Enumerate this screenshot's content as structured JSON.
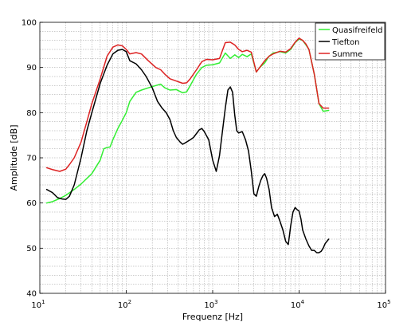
{
  "chart_data": {
    "type": "line",
    "title": "",
    "xlabel": "Frequenz [Hz]",
    "ylabel": "Amplitude [dB]",
    "x_scale": "log",
    "xlim": [
      10,
      100000
    ],
    "ylim": [
      40,
      100
    ],
    "grid": "on",
    "legend_position": "top-right",
    "x_ticks": [
      {
        "value": 10,
        "base": "10",
        "exp": "1"
      },
      {
        "value": 100,
        "base": "10",
        "exp": "2"
      },
      {
        "value": 1000,
        "base": "10",
        "exp": "3"
      },
      {
        "value": 10000,
        "base": "10",
        "exp": "4"
      },
      {
        "value": 100000,
        "base": "10",
        "exp": "5"
      }
    ],
    "y_ticks": [
      "40",
      "50",
      "60",
      "70",
      "80",
      "90",
      "100"
    ],
    "series": [
      {
        "name": "Quasifreifeld",
        "color": "#33ee33",
        "x": [
          12,
          14,
          17,
          20,
          25,
          30,
          40,
          50,
          55,
          60,
          65,
          70,
          80,
          90,
          100,
          110,
          130,
          150,
          180,
          220,
          250,
          280,
          320,
          380,
          450,
          500,
          550,
          650,
          750,
          850,
          1000,
          1200,
          1400,
          1600,
          1800,
          2000,
          2200,
          2500,
          2800,
          3200,
          3500,
          4000,
          4500,
          5000,
          6000,
          7000,
          8000,
          9000,
          10000,
          11000,
          12000,
          13000,
          15000,
          17000,
          19000,
          22000
        ],
        "y": [
          60,
          60.3,
          61,
          61.7,
          63,
          64.2,
          66.5,
          69.5,
          72,
          72.3,
          72.4,
          74,
          76.5,
          78.3,
          80,
          82.5,
          84.5,
          85,
          85.5,
          86,
          86.3,
          85.5,
          85,
          85.1,
          84.4,
          84.6,
          86,
          88.5,
          90,
          90.5,
          90.6,
          91,
          93.2,
          92,
          92.8,
          92.2,
          92.9,
          92.4,
          93,
          89,
          90,
          91,
          92.5,
          93.2,
          93.5,
          93.2,
          94,
          95.5,
          96.3,
          96,
          95,
          94,
          88.5,
          82,
          80.3,
          80.5
        ]
      },
      {
        "name": "Tiefton",
        "color": "#000000",
        "x": [
          12,
          14,
          16,
          18,
          20,
          22,
          25,
          30,
          35,
          40,
          50,
          60,
          70,
          80,
          90,
          100,
          110,
          130,
          150,
          170,
          200,
          230,
          260,
          290,
          320,
          350,
          380,
          420,
          450,
          500,
          550,
          600,
          700,
          750,
          800,
          900,
          1000,
          1100,
          1200,
          1300,
          1400,
          1500,
          1600,
          1700,
          1800,
          1900,
          2000,
          2200,
          2400,
          2600,
          2800,
          3000,
          3200,
          3400,
          3600,
          3800,
          4000,
          4200,
          4500,
          4800,
          5200,
          5600,
          6000,
          6500,
          7000,
          7500,
          8000,
          8500,
          9000,
          9500,
          10000,
          10500,
          11000,
          12000,
          13000,
          14000,
          15000,
          16000,
          17000,
          18000,
          19000,
          20000,
          22000
        ],
        "y": [
          63,
          62.3,
          61.2,
          60.9,
          60.8,
          61.5,
          64,
          70,
          76,
          80,
          86.5,
          90.5,
          93,
          93.8,
          94,
          93.5,
          91.5,
          90.8,
          89.5,
          88,
          85.5,
          82.5,
          81,
          80,
          78.5,
          76,
          74.5,
          73.5,
          73,
          73.5,
          74,
          74.5,
          76.2,
          76.5,
          75.8,
          74,
          69.5,
          67,
          70.5,
          76,
          81,
          85,
          85.7,
          84.5,
          79.5,
          76,
          75.5,
          75.8,
          74,
          71.5,
          67,
          62,
          61.5,
          63.5,
          65,
          66,
          66.5,
          65.5,
          63,
          59,
          57,
          57.5,
          56,
          54,
          51.5,
          50.8,
          55,
          58,
          59,
          58.5,
          58.2,
          56.5,
          54,
          52,
          50.5,
          49.5,
          49.5,
          49,
          49,
          49.3,
          50,
          51,
          52
        ]
      },
      {
        "name": "Summe",
        "color": "#dd2222",
        "x": [
          12,
          14,
          17,
          20,
          22,
          25,
          30,
          35,
          40,
          50,
          60,
          70,
          80,
          90,
          100,
          110,
          130,
          150,
          180,
          220,
          250,
          280,
          320,
          380,
          450,
          500,
          550,
          650,
          750,
          850,
          1000,
          1200,
          1400,
          1600,
          1800,
          2000,
          2200,
          2500,
          2800,
          3200,
          3500,
          4000,
          4500,
          5000,
          6000,
          7000,
          8000,
          9000,
          10000,
          11000,
          12000,
          13000,
          15000,
          17000,
          19000,
          22000
        ],
        "y": [
          67.8,
          67.4,
          67,
          67.5,
          68.5,
          70,
          73.5,
          78,
          82,
          87.5,
          92.5,
          94.5,
          95,
          94.8,
          94,
          93,
          93.3,
          93,
          91.5,
          90,
          89.5,
          88.5,
          87.5,
          87,
          86.5,
          86.6,
          87.5,
          89.5,
          91.3,
          91.8,
          91.7,
          92,
          95.5,
          95.6,
          95,
          94,
          93.5,
          93.8,
          93.4,
          89,
          90,
          91.5,
          92.5,
          93,
          93.6,
          93.4,
          94.2,
          95.6,
          96.5,
          96,
          95.2,
          94,
          88.5,
          82,
          81,
          81
        ]
      }
    ]
  }
}
